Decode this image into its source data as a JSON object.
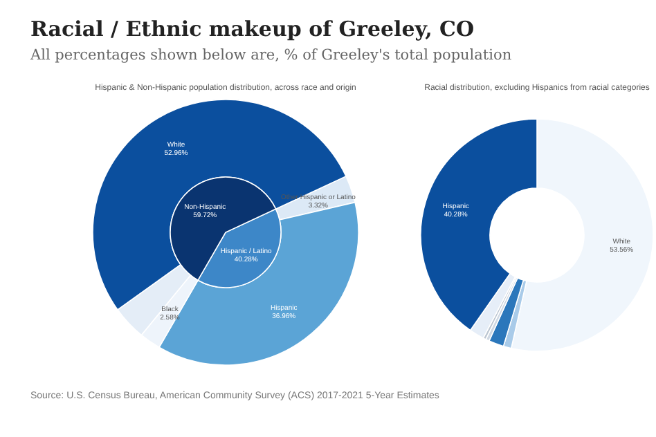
{
  "chart_data": [
    {
      "type": "pie",
      "title": "Racial / Ethnic makeup of Greeley, CO",
      "subtitle": "All percentages shown below are, % of Greeley's total population",
      "xlabel": "Hispanic & Non-Hispanic population distribution, across race and origin",
      "categories": [
        "Hispanic / Latino",
        "Non-Hispanic"
      ],
      "values": [
        40.28,
        59.72
      ],
      "value_labels": [
        "40.28%",
        "59.72%"
      ],
      "colors": [
        "#3d87c8",
        "#0a3470"
      ]
    },
    {
      "type": "donut",
      "categories": [
        "Other Hispanic or Latino",
        "Hispanic",
        "Black",
        null,
        "White"
      ],
      "values": [
        3.32,
        36.96,
        2.58,
        4.18,
        52.96
      ],
      "value_labels": [
        "3.32%",
        "36.96%",
        "2.58%",
        null,
        "52.96%"
      ],
      "colors": [
        "#dce9f6",
        "#5ba4d6",
        "#eef4fb",
        "#e4edf7",
        "#0b4f9e"
      ]
    },
    {
      "type": "donut",
      "xlabel": "Racial distribution, excluding Hispanics from racial categories",
      "annotations": [
        "Source: U.S. Census Bureau, American Community Survey (ACS) 2017-2021 5-Year Estimates"
      ],
      "categories": [
        "White",
        null,
        null,
        null,
        null,
        null,
        "Hispanic"
      ],
      "values": [
        53.56,
        1.1,
        2.1,
        0.5,
        0.4,
        2.06,
        40.28
      ],
      "value_labels": [
        "53.56%",
        null,
        null,
        null,
        null,
        null,
        "40.28%"
      ],
      "colors": [
        "#f0f6fc",
        "#a9cbe9",
        "#2b77bb",
        "#cfd8e3",
        "#bcc6d2",
        "#e6eef8",
        "#0b4f9e"
      ]
    }
  ]
}
